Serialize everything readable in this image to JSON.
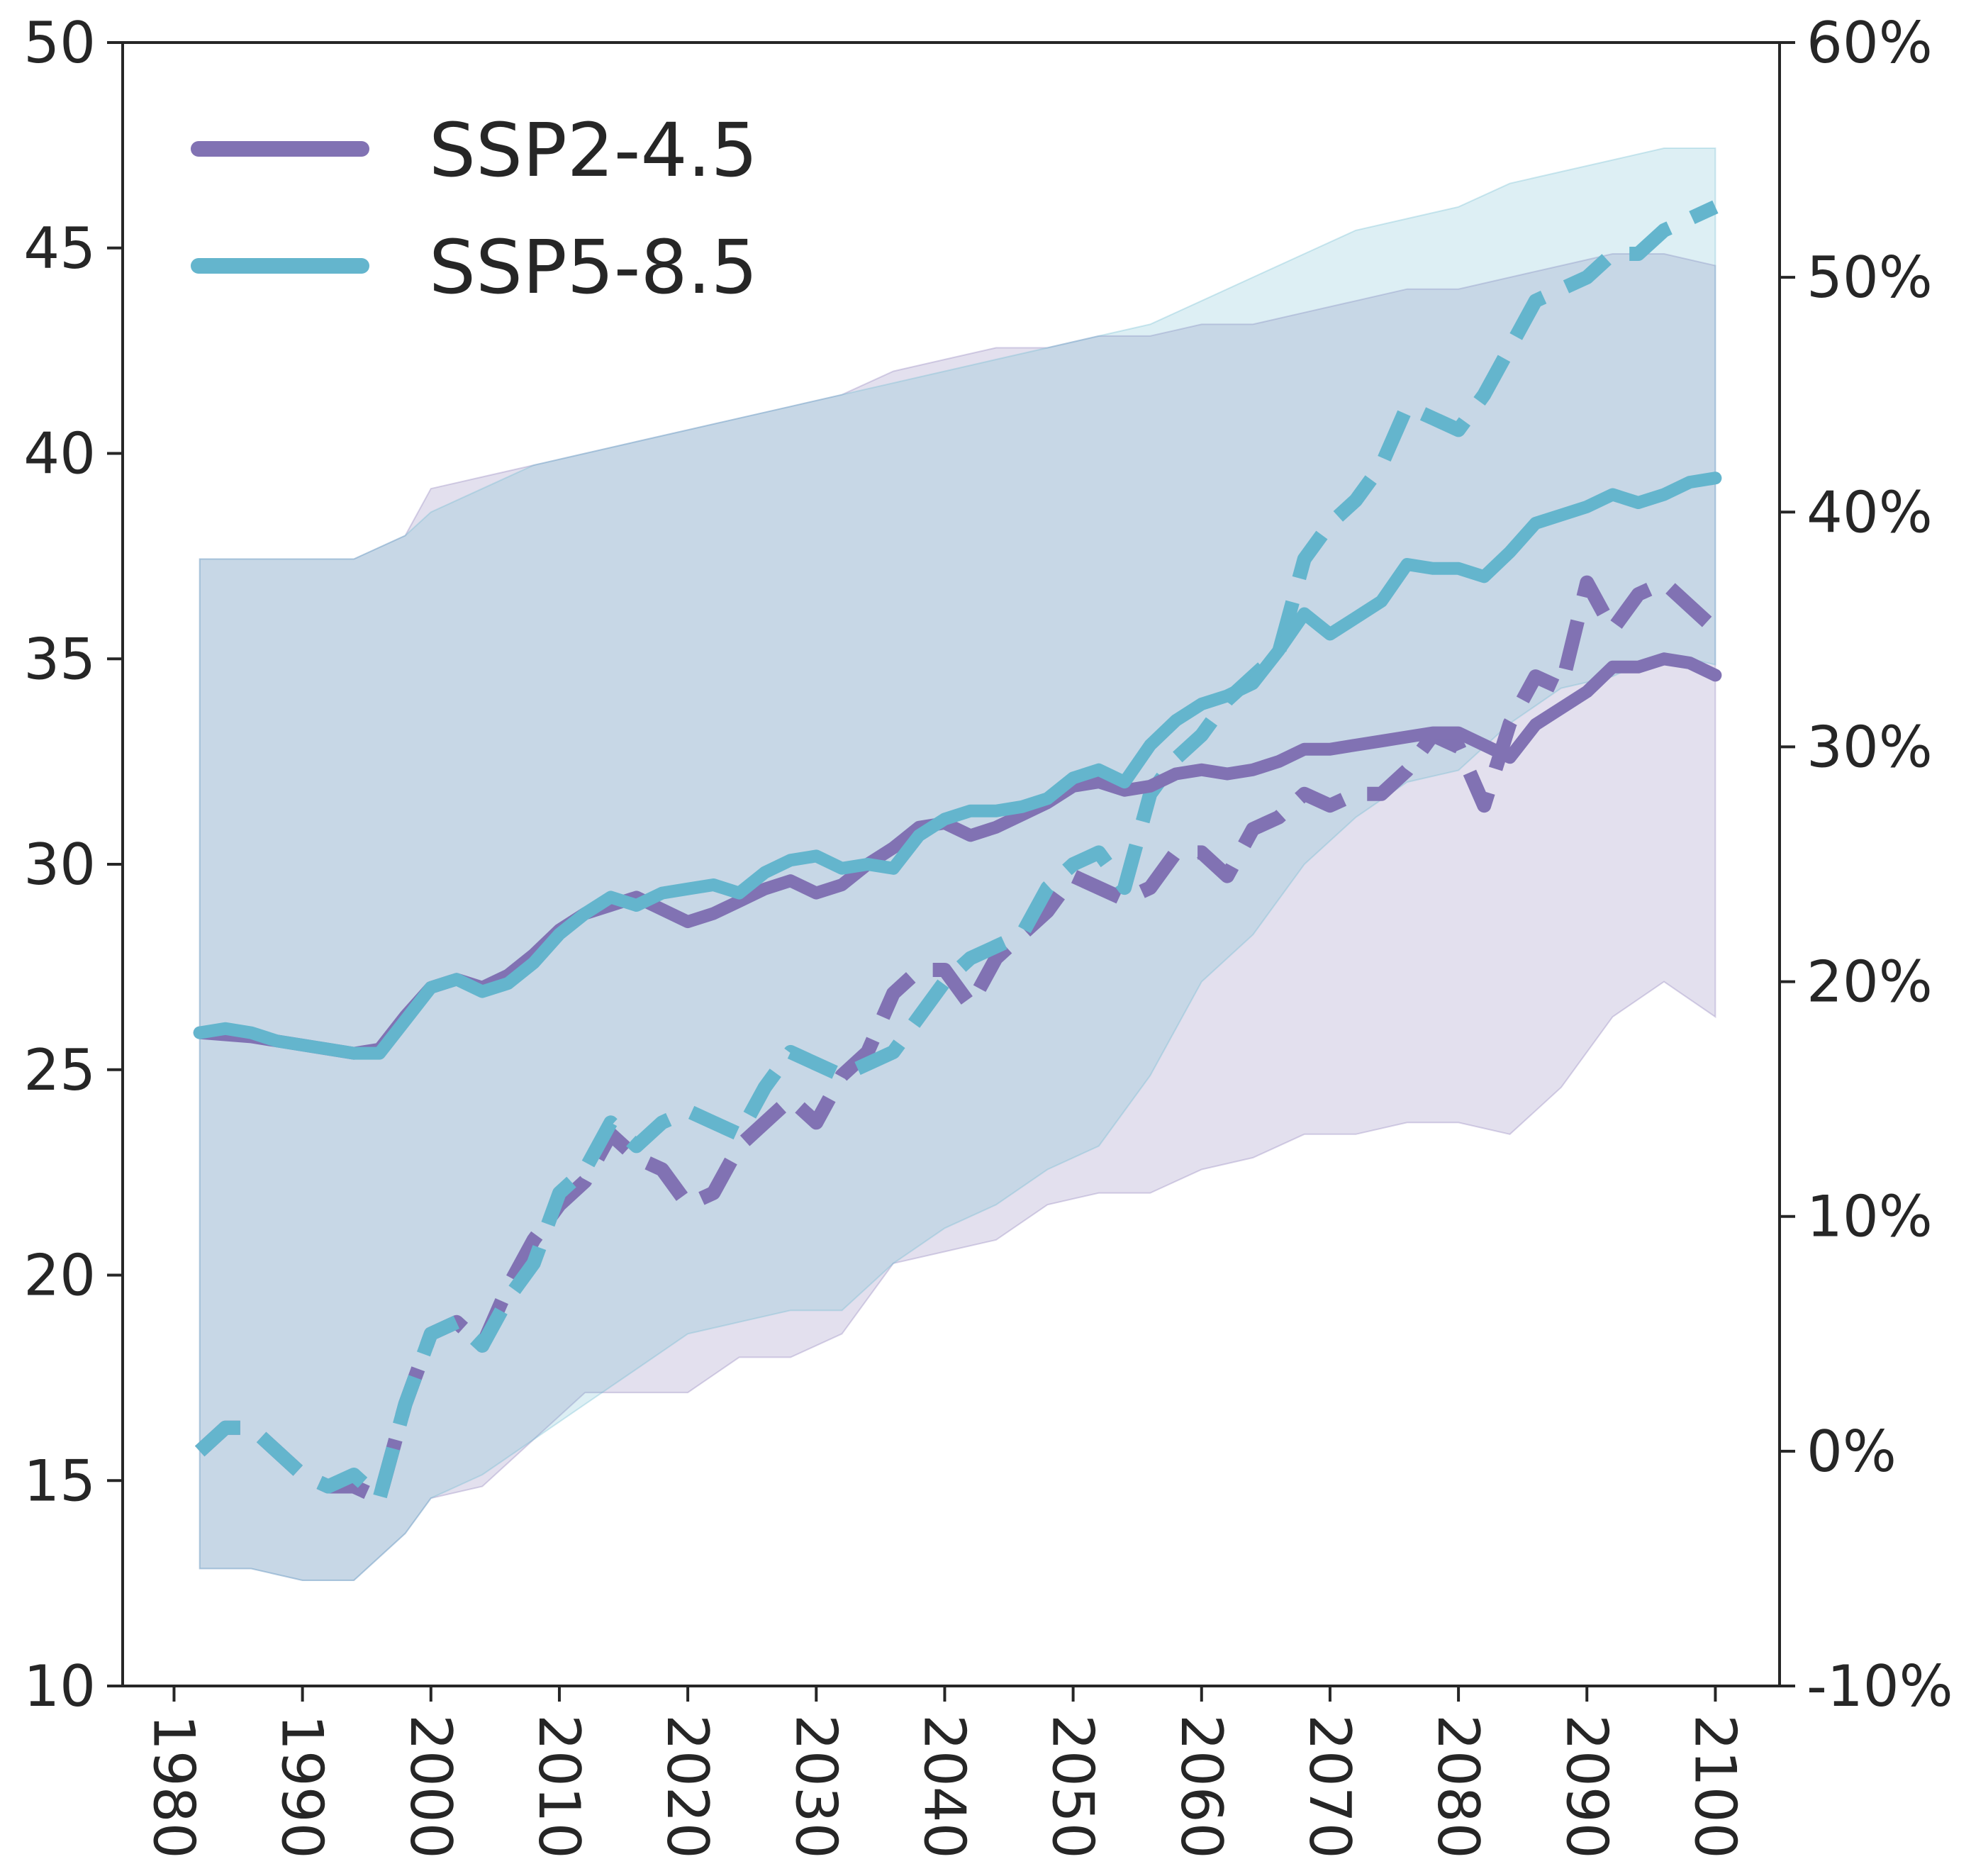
{
  "chart_data": {
    "type": "line",
    "x_axis": {
      "min": 1976,
      "max": 2105,
      "ticks": [
        1980,
        1990,
        2000,
        2010,
        2020,
        2030,
        2040,
        2050,
        2060,
        2070,
        2080,
        2090,
        2100
      ],
      "tick_labels": [
        "1980",
        "1990",
        "2000",
        "2010",
        "2020",
        "2030",
        "2040",
        "2050",
        "2060",
        "2070",
        "2080",
        "2090",
        "2100"
      ]
    },
    "y_left": {
      "min": 10,
      "max": 50,
      "ticks": [
        10,
        15,
        20,
        25,
        30,
        35,
        40,
        45,
        50
      ],
      "tick_labels": [
        "10",
        "15",
        "20",
        "25",
        "30",
        "35",
        "40",
        "45",
        "50"
      ]
    },
    "y_right": {
      "min": -10,
      "max": 60,
      "ticks": [
        -10,
        0,
        10,
        20,
        30,
        40,
        50,
        60
      ],
      "tick_labels": [
        "-10%",
        "0%",
        "10%",
        "20%",
        "30%",
        "40%",
        "50%",
        "60%"
      ]
    },
    "legend": {
      "placement": "top-left",
      "entries": [
        "SSP2-4.5",
        "SSP5-8.5"
      ]
    },
    "grid": false,
    "series": [
      {
        "name": "SSP2-4.5",
        "color": "#8172B3",
        "solid_left_axis": {
          "x": [
            1982,
            1986,
            1990,
            1994,
            1996,
            1998,
            2000,
            2002,
            2004,
            2006,
            2008,
            2010,
            2012,
            2014,
            2016,
            2018,
            2020,
            2022,
            2024,
            2026,
            2028,
            2030,
            2032,
            2034,
            2036,
            2038,
            2040,
            2042,
            2044,
            2046,
            2048,
            2050,
            2052,
            2054,
            2056,
            2058,
            2060,
            2062,
            2064,
            2066,
            2068,
            2070,
            2072,
            2074,
            2076,
            2078,
            2080,
            2082,
            2084,
            2086,
            2088,
            2090,
            2092,
            2094,
            2096,
            2098,
            2100
          ],
          "y": [
            25.9,
            25.8,
            25.6,
            25.4,
            25.5,
            26.3,
            27.0,
            27.2,
            27.0,
            27.3,
            27.8,
            28.4,
            28.8,
            29.0,
            29.2,
            28.9,
            28.6,
            28.8,
            29.1,
            29.4,
            29.6,
            29.3,
            29.5,
            30.0,
            30.4,
            30.9,
            31.0,
            30.7,
            30.9,
            31.2,
            31.5,
            31.9,
            32.0,
            31.8,
            31.9,
            32.2,
            32.3,
            32.2,
            32.3,
            32.5,
            32.8,
            32.8,
            32.9,
            33.0,
            33.1,
            33.2,
            33.2,
            32.9,
            32.6,
            33.4,
            33.8,
            34.2,
            34.8,
            34.8,
            35.0,
            34.9,
            34.6
          ]
        },
        "dashed_right_axis": {
          "x": [
            1982,
            1984,
            1986,
            1988,
            1990,
            1992,
            1994,
            1996,
            1998,
            2000,
            2002,
            2004,
            2006,
            2008,
            2010,
            2012,
            2014,
            2016,
            2018,
            2020,
            2022,
            2024,
            2026,
            2028,
            2030,
            2032,
            2034,
            2036,
            2038,
            2040,
            2042,
            2044,
            2046,
            2048,
            2050,
            2052,
            2054,
            2056,
            2058,
            2060,
            2062,
            2064,
            2066,
            2068,
            2070,
            2072,
            2074,
            2076,
            2078,
            2080,
            2082,
            2084,
            2086,
            2088,
            2090,
            2092,
            2094,
            2096,
            2098,
            2100
          ],
          "y": [
            0.0,
            1.0,
            1.0,
            0.0,
            -1.0,
            -1.5,
            -1.5,
            -2.0,
            2.0,
            5.0,
            5.5,
            4.5,
            7.0,
            9.0,
            10.5,
            11.5,
            13.5,
            12.5,
            12.0,
            10.5,
            11.0,
            13.0,
            14.0,
            15.0,
            14.0,
            16.0,
            17.0,
            19.5,
            20.5,
            20.5,
            19.0,
            21.0,
            22.0,
            23.0,
            24.5,
            24.0,
            23.5,
            24.0,
            25.5,
            25.5,
            24.5,
            26.5,
            27.0,
            28.0,
            27.5,
            28.0,
            28.0,
            29.0,
            30.5,
            30.0,
            27.5,
            31.0,
            33.0,
            32.5,
            37.0,
            35.0,
            36.5,
            37.0,
            36.0,
            35.0
          ]
        },
        "band_right_axis": {
          "x": [
            1982,
            1986,
            1990,
            1994,
            1998,
            2000,
            2004,
            2008,
            2012,
            2016,
            2020,
            2024,
            2028,
            2032,
            2036,
            2040,
            2044,
            2048,
            2052,
            2056,
            2060,
            2064,
            2068,
            2072,
            2076,
            2080,
            2084,
            2088,
            2092,
            2096,
            2100
          ],
          "lower": [
            -5.0,
            -5.0,
            -5.5,
            -5.5,
            -3.5,
            -2.0,
            -1.5,
            0.5,
            2.5,
            2.5,
            2.5,
            4.0,
            4.0,
            5.0,
            8.0,
            8.5,
            9.0,
            10.5,
            11.0,
            11.0,
            12.0,
            12.5,
            13.5,
            13.5,
            14.0,
            14.0,
            13.5,
            15.5,
            18.5,
            20.0,
            18.5
          ],
          "upper": [
            38.0,
            38.0,
            38.0,
            38.0,
            39.0,
            41.0,
            41.5,
            42.0,
            42.5,
            43.0,
            43.5,
            44.0,
            44.5,
            45.0,
            46.0,
            46.5,
            47.0,
            47.0,
            47.5,
            47.5,
            48.0,
            48.0,
            48.5,
            49.0,
            49.5,
            49.5,
            50.0,
            50.5,
            51.0,
            51.0,
            50.5
          ]
        }
      },
      {
        "name": "SSP5-8.5",
        "color": "#64B5CD",
        "solid_left_axis": {
          "x": [
            1982,
            1984,
            1986,
            1988,
            1990,
            1992,
            1994,
            1996,
            1998,
            2000,
            2002,
            2004,
            2006,
            2008,
            2010,
            2012,
            2014,
            2016,
            2018,
            2020,
            2022,
            2024,
            2026,
            2028,
            2030,
            2032,
            2034,
            2036,
            2038,
            2040,
            2042,
            2044,
            2046,
            2048,
            2050,
            2052,
            2054,
            2056,
            2058,
            2060,
            2062,
            2064,
            2066,
            2068,
            2070,
            2072,
            2074,
            2076,
            2078,
            2080,
            2082,
            2084,
            2086,
            2088,
            2090,
            2092,
            2094,
            2096,
            2098,
            2100
          ],
          "y": [
            25.9,
            26.0,
            25.9,
            25.7,
            25.6,
            25.5,
            25.4,
            25.4,
            26.2,
            27.0,
            27.2,
            26.9,
            27.1,
            27.6,
            28.3,
            28.8,
            29.2,
            29.0,
            29.3,
            29.4,
            29.5,
            29.3,
            29.8,
            30.1,
            30.2,
            29.9,
            30.0,
            29.9,
            30.7,
            31.1,
            31.3,
            31.3,
            31.4,
            31.6,
            32.1,
            32.3,
            32.0,
            32.9,
            33.5,
            33.9,
            34.1,
            34.4,
            35.2,
            36.1,
            35.6,
            36.0,
            36.4,
            37.3,
            37.2,
            37.2,
            37.0,
            37.6,
            38.3,
            38.5,
            38.7,
            39.0,
            38.8,
            39.0,
            39.3,
            39.4
          ]
        },
        "dashed_right_axis": {
          "x": [
            1982,
            1984,
            1986,
            1988,
            1990,
            1992,
            1994,
            1996,
            1998,
            2000,
            2002,
            2004,
            2006,
            2008,
            2010,
            2012,
            2014,
            2016,
            2018,
            2020,
            2022,
            2024,
            2026,
            2028,
            2030,
            2032,
            2034,
            2036,
            2038,
            2040,
            2042,
            2044,
            2046,
            2048,
            2050,
            2052,
            2054,
            2056,
            2058,
            2060,
            2062,
            2064,
            2066,
            2068,
            2070,
            2072,
            2074,
            2076,
            2078,
            2080,
            2082,
            2084,
            2086,
            2088,
            2090,
            2092,
            2094,
            2096,
            2098,
            2100
          ],
          "y": [
            0.0,
            1.0,
            1.0,
            0.0,
            -1.0,
            -1.5,
            -1.0,
            -2.0,
            2.0,
            5.0,
            5.5,
            4.5,
            6.5,
            8.0,
            11.0,
            12.0,
            14.0,
            13.0,
            14.0,
            14.5,
            14.0,
            13.5,
            15.5,
            17.0,
            16.5,
            16.0,
            16.5,
            17.0,
            18.5,
            20.0,
            21.0,
            21.5,
            22.0,
            24.0,
            25.0,
            25.5,
            24.0,
            28.0,
            29.5,
            30.5,
            32.0,
            33.0,
            34.0,
            38.0,
            39.5,
            40.5,
            42.0,
            44.5,
            44.0,
            43.5,
            45.0,
            47.0,
            49.0,
            49.5,
            50.0,
            51.0,
            51.0,
            52.0,
            52.5,
            53.0
          ]
        },
        "band_right_axis": {
          "x": [
            1982,
            1986,
            1990,
            1994,
            1998,
            2000,
            2004,
            2008,
            2012,
            2016,
            2020,
            2024,
            2028,
            2032,
            2036,
            2040,
            2044,
            2048,
            2052,
            2056,
            2060,
            2064,
            2068,
            2072,
            2076,
            2080,
            2084,
            2088,
            2092,
            2096,
            2100
          ],
          "lower": [
            -5.0,
            -5.0,
            -5.5,
            -5.5,
            -3.5,
            -2.0,
            -1.0,
            0.5,
            2.0,
            3.5,
            5.0,
            5.5,
            6.0,
            6.0,
            8.0,
            9.5,
            10.5,
            12.0,
            13.0,
            16.0,
            20.0,
            22.0,
            25.0,
            27.0,
            28.5,
            29.0,
            31.0,
            32.5,
            33.0,
            34.0,
            33.5
          ],
          "upper": [
            38.0,
            38.0,
            38.0,
            38.0,
            39.0,
            40.0,
            41.0,
            42.0,
            42.5,
            43.0,
            43.5,
            44.0,
            44.5,
            45.0,
            45.5,
            46.0,
            46.5,
            47.0,
            47.5,
            48.0,
            49.0,
            50.0,
            51.0,
            52.0,
            52.5,
            53.0,
            54.0,
            54.5,
            55.0,
            55.5,
            55.5
          ]
        }
      }
    ]
  }
}
